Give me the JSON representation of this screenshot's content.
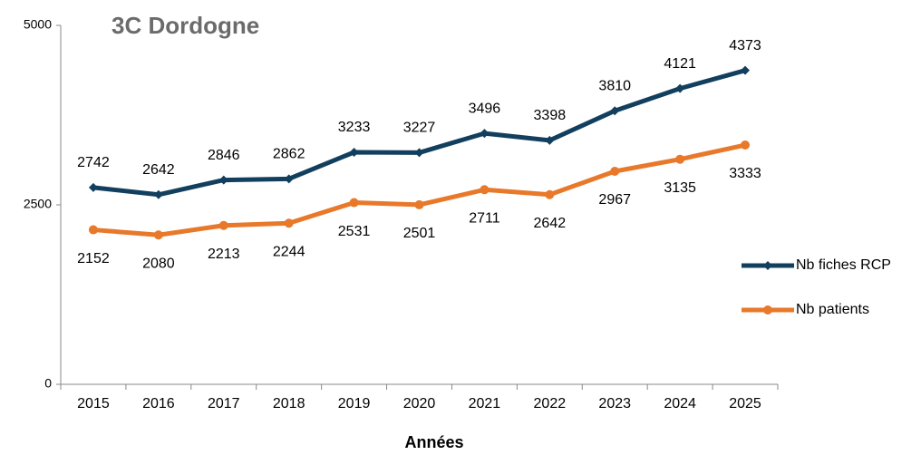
{
  "chart_data": {
    "type": "line",
    "title": "3C Dordogne",
    "x_label": "Années",
    "categories": [
      "2015",
      "2016",
      "2017",
      "2018",
      "2019",
      "2020",
      "2021",
      "2022",
      "2023",
      "2024",
      "2025"
    ],
    "series": [
      {
        "name": "Nb fiches RCP",
        "color": "#123f5e",
        "marker": "diamond",
        "values": [
          2742,
          2642,
          2846,
          2862,
          3233,
          3227,
          3496,
          3398,
          3810,
          4121,
          4373
        ]
      },
      {
        "name": "Nb patients",
        "color": "#e8782a",
        "marker": "circle",
        "values": [
          2152,
          2080,
          2213,
          2244,
          2531,
          2501,
          2711,
          2642,
          2967,
          3135,
          3333
        ]
      }
    ],
    "ylim": [
      0,
      5000
    ],
    "yticks": [
      0,
      2500,
      5000
    ],
    "grid": false,
    "legend": "right"
  }
}
